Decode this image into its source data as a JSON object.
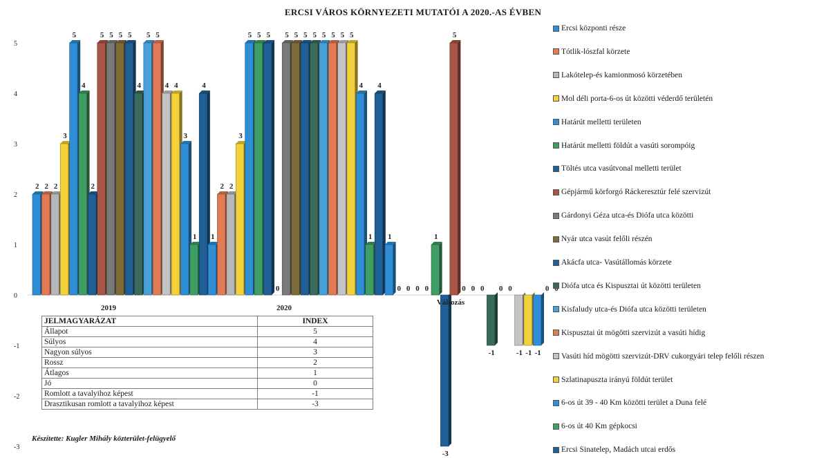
{
  "chart_data": {
    "type": "bar",
    "title": "ERCSI VÁROS KÖRNYEZETI MUTATÓI A 2020.-AS ÉVBEN",
    "categories": [
      "2019",
      "2020",
      "Változás"
    ],
    "ylim": [
      -3,
      5
    ],
    "yticks": [
      "-3",
      "-2",
      "-1",
      "0",
      "1",
      "2",
      "3",
      "4",
      "5"
    ],
    "series": [
      {
        "name": "Ercsi központi része",
        "color": "#2f8ed6",
        "values": [
          2,
          1,
          1
        ]
      },
      {
        "name": "Tótlik-lószfal körzete",
        "color": "#e07b55",
        "values": [
          2,
          2,
          0
        ]
      },
      {
        "name": "Lakótelep-és kamionmosó körzetében",
        "color": "#b7b7b7",
        "values": [
          2,
          2,
          0
        ]
      },
      {
        "name": "Mol déli porta-6-os út közötti véderdő területén",
        "color": "#f2d13a",
        "values": [
          3,
          3,
          0
        ]
      },
      {
        "name": "Határút melletti területen",
        "color": "#2f8ed6",
        "values": [
          5,
          5,
          0
        ]
      },
      {
        "name": "Határút melletti földút a vasúti sorompóig",
        "color": "#3f9e63",
        "values": [
          4,
          5,
          1
        ]
      },
      {
        "name": "Töltés utca vasútvonal melletti terület",
        "color": "#1f5f96",
        "values": [
          2,
          5,
          -3
        ]
      },
      {
        "name": "Gépjármű körforgó Ráckeresztúr felé szervizút",
        "color": "#a85545",
        "values": [
          5,
          0,
          5
        ]
      },
      {
        "name": "Gárdonyi Géza utca-és Diófa utca közötti",
        "color": "#7a7a7a",
        "values": [
          5,
          5,
          0
        ]
      },
      {
        "name": "Nyár utca vasút felőli részén",
        "color": "#7f6a3a",
        "values": [
          5,
          5,
          0
        ]
      },
      {
        "name": "Akácfa utca- Vasútállomás körzete",
        "color": "#1f5f96",
        "values": [
          5,
          5,
          0
        ]
      },
      {
        "name": "Diófa utca és Kispusztai út közötti területen",
        "color": "#3a6a5a",
        "values": [
          4,
          5,
          -1
        ]
      },
      {
        "name": "Kisfaludy utca-és Diófa utca közötti területen",
        "color": "#47a0d8",
        "values": [
          5,
          5,
          0
        ]
      },
      {
        "name": "Kispusztai út mögötti szervizút a vasúti hídig",
        "color": "#e07b55",
        "values": [
          5,
          5,
          0
        ]
      },
      {
        "name": "Vasúti híd mögötti szervizút-DRV cukorgyári telep felőli részen",
        "color": "#c4c4c4",
        "values": [
          4,
          5,
          -1
        ]
      },
      {
        "name": "Szlatinapuszta irányú földút terület",
        "color": "#f2d13a",
        "values": [
          4,
          5,
          -1
        ]
      },
      {
        "name": "6-os út 39 - 40 Km közötti terület a Duna felé",
        "color": "#2f8ed6",
        "values": [
          3,
          4,
          -1
        ]
      },
      {
        "name": "6-os út 40 Km gépkocsi",
        "color": "#3f9e63",
        "values": [
          1,
          1,
          0
        ]
      },
      {
        "name": "Ercsi Sinatelep, Madách utcai erdős",
        "color": "#1f5f96",
        "values": [
          4,
          4,
          0
        ]
      }
    ]
  },
  "legend_table": {
    "header": {
      "label": "JELMAGYARÁZAT",
      "index": "INDEX"
    },
    "rows": [
      {
        "label": "Állapot",
        "index": "5"
      },
      {
        "label": "Súlyos",
        "index": "4"
      },
      {
        "label": "Nagyon súlyos",
        "index": "3"
      },
      {
        "label": "Rossz",
        "index": "2"
      },
      {
        "label": "Átlagos",
        "index": "1"
      },
      {
        "label": "Jó",
        "index": "0"
      },
      {
        "label": "Romlott a tavalyihoz képest",
        "index": "-1"
      },
      {
        "label": "Drasztikusan romlott a tavalyihoz képest",
        "index": "-3"
      }
    ]
  },
  "credit": "Készítette: Kugler Mihály közterület-felügyelő"
}
